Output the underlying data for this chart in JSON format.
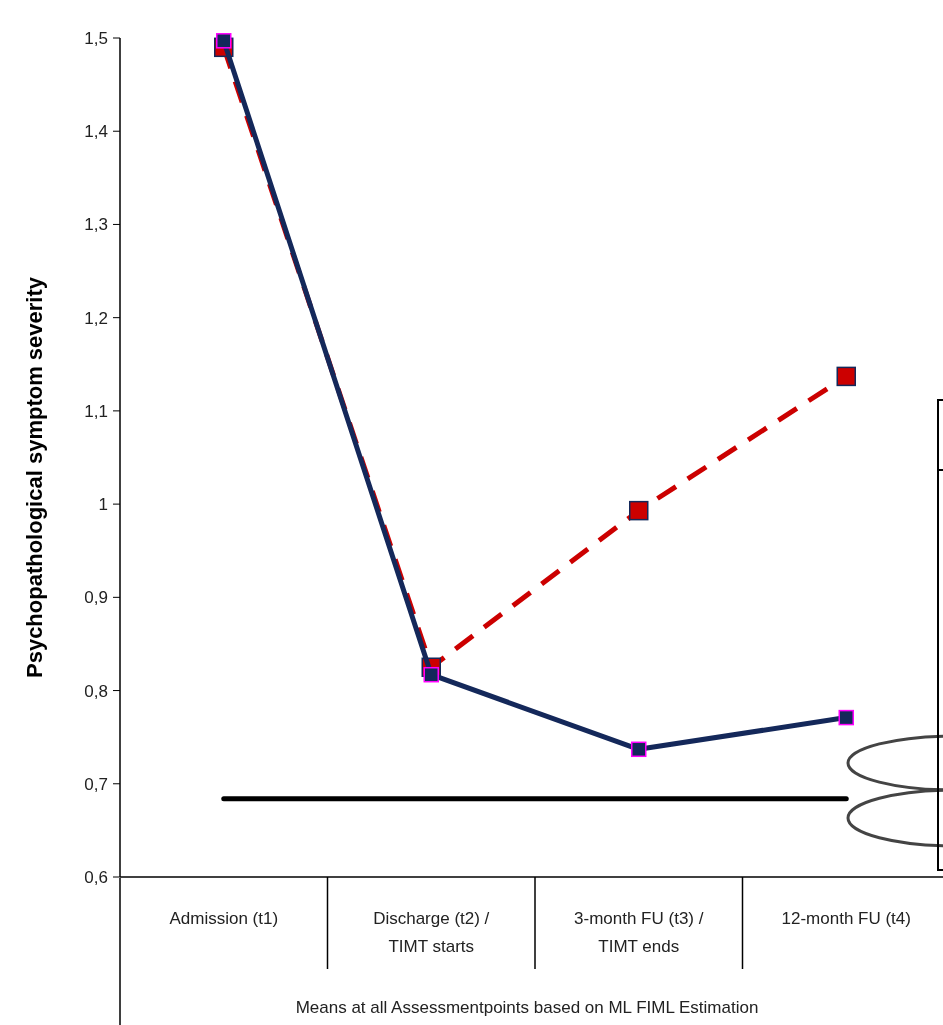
{
  "chart_data": {
    "type": "line",
    "ylabel": "Psychopathological symptom severity",
    "xlabel": "Means at all Assessmentpoints based on ML FIML Estimation",
    "categories": [
      "Admission (t1)",
      "Discharge (t2) /\nTIMT starts",
      "3-month FU (t3) /\nTIMT ends",
      "12-month FU (t4)"
    ],
    "series": [
      {
        "color": "#cc0000",
        "values": [
          1.49,
          0.825,
          0.993,
          1.137
        ],
        "line_style": "dashed",
        "marker": "square"
      },
      {
        "color": "#14285a",
        "values": [
          1.497,
          0.817,
          0.737,
          0.771
        ],
        "line_style": "solid",
        "marker": "square"
      }
    ],
    "ylim": [
      0.6,
      1.5
    ],
    "yticks": [
      {
        "value": 0.6,
        "label": "0,6"
      },
      {
        "value": 0.7,
        "label": "0,7"
      },
      {
        "value": 0.8,
        "label": "0,8"
      },
      {
        "value": 0.9,
        "label": "0,9"
      },
      1,
      {
        "value": 1.1,
        "label": "1,1"
      },
      {
        "value": 1.2,
        "label": "1,2"
      },
      {
        "value": 1.3,
        "label": "1,3"
      },
      {
        "value": 1.4,
        "label": "1,4"
      },
      {
        "value": 1.5,
        "label": "1,5"
      }
    ],
    "ref_lines": [
      {
        "axis": "y",
        "value": 0.684,
        "color": "#000000"
      }
    ],
    "grid": false
  }
}
